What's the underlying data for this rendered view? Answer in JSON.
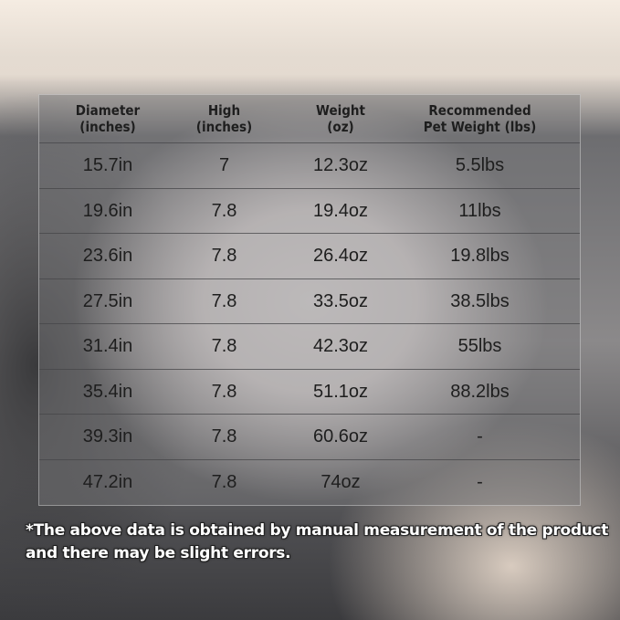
{
  "table": {
    "headers": [
      "Diameter\n(inches)",
      "High\n(inches)",
      "Weight\n(oz)",
      "Recommended\nPet Weight (lbs)"
    ],
    "header_lines": [
      [
        "Diameter",
        "(inches)"
      ],
      [
        "High",
        "(inches)"
      ],
      [
        "Weight",
        "(oz)"
      ],
      [
        "Recommended",
        "Pet Weight (lbs)"
      ]
    ],
    "rows": [
      [
        "15.7in",
        "7",
        "12.3oz",
        "5.5lbs"
      ],
      [
        "19.6in",
        "7.8",
        "19.4oz",
        "11lbs"
      ],
      [
        "23.6in",
        "7.8",
        "26.4oz",
        "19.8lbs"
      ],
      [
        "27.5in",
        "7.8",
        "33.5oz",
        "38.5lbs"
      ],
      [
        "31.4in",
        "7.8",
        "42.3oz",
        "55lbs"
      ],
      [
        "35.4in",
        "7.8",
        "51.1oz",
        "88.2lbs"
      ],
      [
        "39.3in",
        "7.8",
        "60.6oz",
        "-"
      ],
      [
        "47.2in",
        "7.8",
        "74oz",
        "-"
      ]
    ]
  },
  "note": {
    "line1": "*The above data is obtained by manual measurement of the product",
    "line2": "and there may be slight errors."
  }
}
